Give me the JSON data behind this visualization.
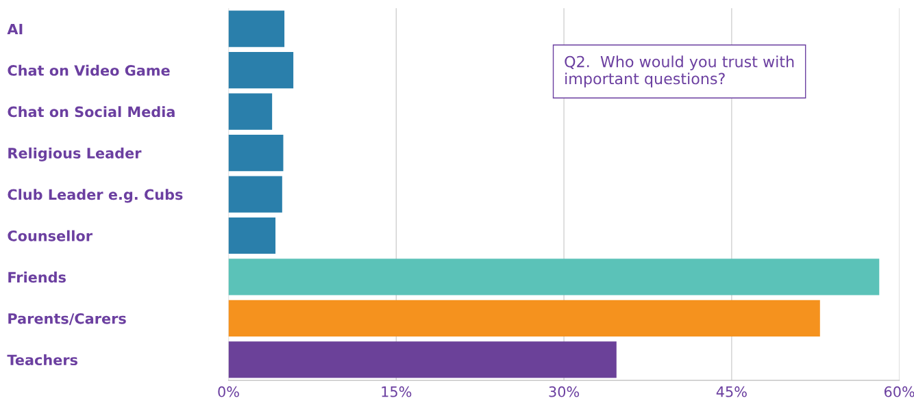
{
  "chart_data": {
    "type": "bar",
    "orientation": "horizontal",
    "categories": [
      "AI",
      "Chat on Video Game",
      "Chat on Social Media",
      "Religious Leader",
      "Club Leader e.g. Cubs",
      "Counsellor",
      "Friends",
      "Parents/Carers",
      "Teachers"
    ],
    "values": [
      5.0,
      5.8,
      3.9,
      4.9,
      4.8,
      4.2,
      58.2,
      52.9,
      34.7
    ],
    "colors": [
      "#2a7fab",
      "#2a7fab",
      "#2a7fab",
      "#2a7fab",
      "#2a7fab",
      "#2a7fab",
      "#5bc2b8",
      "#f5921e",
      "#6b4199"
    ],
    "xlim": [
      0,
      60
    ],
    "xticks": [
      {
        "value": 0,
        "label": "0%"
      },
      {
        "value": 15,
        "label": "15%"
      },
      {
        "value": 30,
        "label": "30%"
      },
      {
        "value": 45,
        "label": "45%"
      },
      {
        "value": 60,
        "label": "60%"
      }
    ],
    "grid": "x",
    "annotations": [
      "Q2.  Who would you trust with\nimportant questions?"
    ]
  }
}
